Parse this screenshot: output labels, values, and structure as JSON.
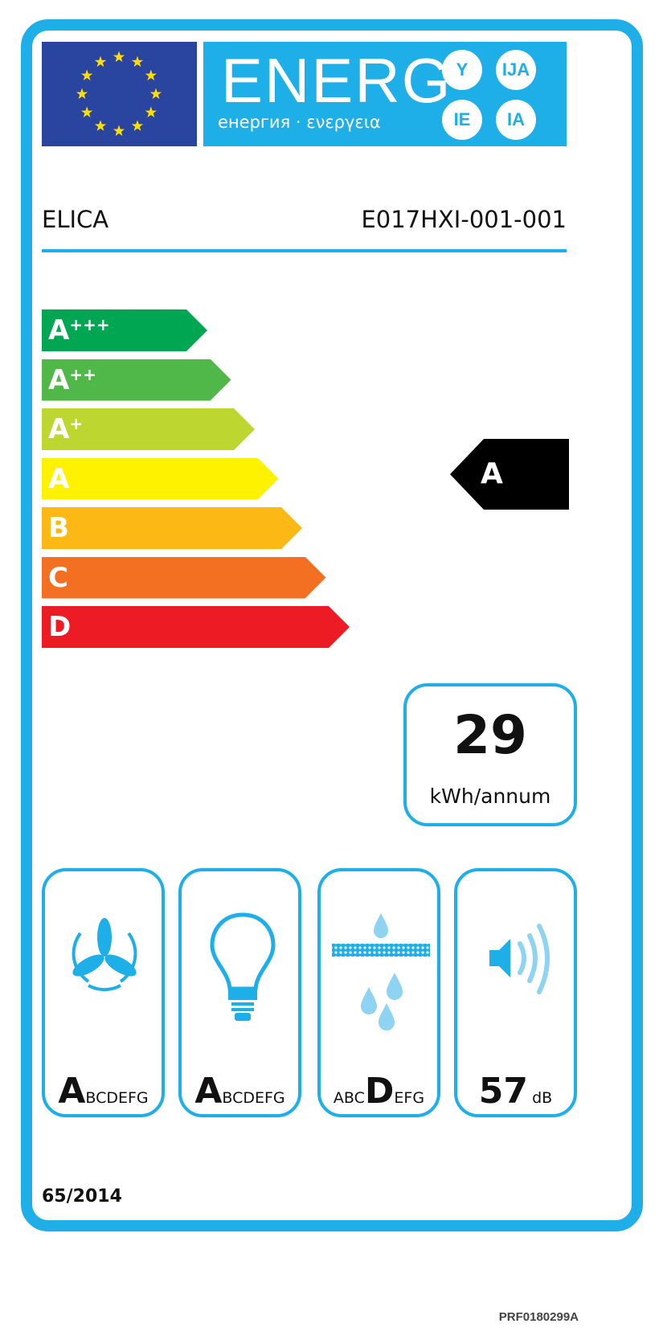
{
  "header": {
    "energy_word": "ENERG",
    "subtitle": "енергия · ενεργεια",
    "suffixes": [
      "Y",
      "IJA",
      "IE",
      "IA"
    ]
  },
  "supplier": "ELICA",
  "model": "E017HXI-001-001",
  "scale": {
    "classes": [
      {
        "label": "A",
        "plus": "+++",
        "color": "#00a651"
      },
      {
        "label": "A",
        "plus": "++",
        "color": "#50b848"
      },
      {
        "label": "A",
        "plus": "+",
        "color": "#bed630"
      },
      {
        "label": "A",
        "plus": "",
        "color": "#fff200"
      },
      {
        "label": "B",
        "plus": "",
        "color": "#fcb814"
      },
      {
        "label": "C",
        "plus": "",
        "color": "#f36f21"
      },
      {
        "label": "D",
        "plus": "",
        "color": "#ed1c24"
      }
    ],
    "rating": "A"
  },
  "consumption": {
    "value": "29",
    "unit": "kWh/annum"
  },
  "pictograms": [
    {
      "icon": "fan-icon",
      "big": "A",
      "before": "",
      "after": "BCDEFG"
    },
    {
      "icon": "light-bulb-icon",
      "big": "A",
      "before": "",
      "after": "BCDEFG"
    },
    {
      "icon": "grease-filter-icon",
      "big": "D",
      "before": "ABC",
      "after": "EFG"
    },
    {
      "icon": "speaker-icon",
      "value": "57",
      "unit": "dB"
    }
  ],
  "regulation": "65/2014",
  "reference": "PRF0180299A",
  "colors": {
    "frame": "#1eaee8",
    "flag": "#2a45a0",
    "star": "#ffdd00"
  }
}
